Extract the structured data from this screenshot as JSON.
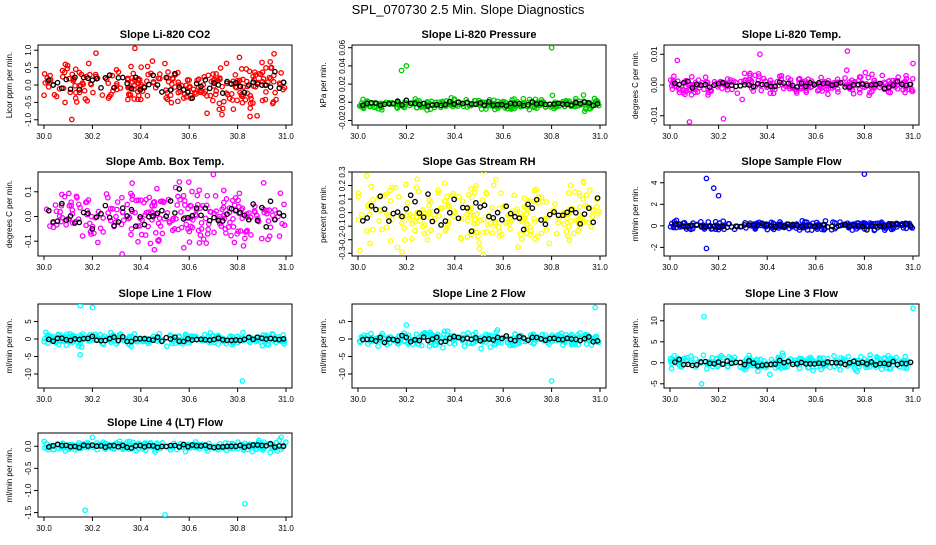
{
  "page_title": "SPL_070730  2.5 Min. Slope Diagnostics",
  "x_ticks": [
    "30.0",
    "30.2",
    "30.4",
    "30.6",
    "30.8",
    "31.0"
  ],
  "x_range": [
    30.0,
    31.0
  ],
  "colors": {
    "black": "#000000",
    "red": "#ff0000",
    "green": "#00cc00",
    "magenta": "#ff00ff",
    "yellow": "#ffff00",
    "blue": "#0000ff",
    "cyan": "#00ffff"
  },
  "chart_data": [
    {
      "type": "scatter",
      "title": "Slope Li-820 CO2",
      "ylabel": "Licor ppm per min.",
      "ylim": [
        -1.15,
        1.15
      ],
      "yticks": [
        "-1.0",
        "-0.5",
        "0.0",
        "0.5",
        "1.0"
      ],
      "ytick_values": [
        -1.0,
        -0.5,
        0.0,
        0.5,
        1.0
      ],
      "color": "red",
      "center": 0.0,
      "spread": 0.35,
      "outliers": []
    },
    {
      "type": "scatter",
      "title": "Slope Li-820 Pressure",
      "ylabel": "kPa per min.",
      "ylim": [
        -0.025,
        0.063
      ],
      "yticks": [
        "-0.02",
        "0.00",
        "0.02",
        "0.04",
        "0.06"
      ],
      "ytick_values": [
        -0.02,
        0.0,
        0.02,
        0.04,
        0.06
      ],
      "color": "green",
      "center": -0.002,
      "spread": 0.003,
      "outliers": [
        [
          30.18,
          0.035
        ],
        [
          30.2,
          0.04
        ],
        [
          30.8,
          0.06
        ]
      ]
    },
    {
      "type": "scatter",
      "title": "Slope Li-820 Temp.",
      "ylabel": "degrees C per min.",
      "ylim": [
        -0.013,
        0.013
      ],
      "yticks": [
        "-0.01",
        "0.00",
        "0.01"
      ],
      "ytick_values": [
        -0.01,
        0.0,
        0.01
      ],
      "color": "magenta",
      "center": 0.0,
      "spread": 0.0015,
      "outliers": [
        [
          30.03,
          0.008
        ],
        [
          30.08,
          -0.012
        ],
        [
          30.22,
          -0.011
        ],
        [
          30.37,
          0.01
        ],
        [
          30.73,
          0.011
        ],
        [
          31.0,
          0.007
        ]
      ]
    },
    {
      "type": "scatter",
      "title": "Slope Amb. Box Temp.",
      "ylabel": "degrees C per min.",
      "ylim": [
        -0.16,
        0.18
      ],
      "yticks": [
        "-0.1",
        "0.0",
        "0.1"
      ],
      "ytick_values": [
        -0.1,
        0.0,
        0.1
      ],
      "color": "magenta",
      "center": 0.0,
      "spread": 0.06,
      "outliers": [
        [
          30.7,
          0.17
        ]
      ]
    },
    {
      "type": "scatter",
      "title": "Slope Gas Stream RH",
      "ylabel": "percent per min.",
      "ylim": [
        -0.32,
        0.3
      ],
      "yticks": [
        "-0.3",
        "-0.2",
        "-0.1",
        "0.0",
        "0.1",
        "0.2",
        "0.3"
      ],
      "ytick_values": [
        -0.3,
        -0.2,
        -0.1,
        0.0,
        0.1,
        0.2,
        0.3
      ],
      "color": "yellow",
      "center": 0.0,
      "spread": 0.12,
      "outliers": []
    },
    {
      "type": "scatter",
      "title": "Slope Sample Flow",
      "ylabel": "ml/min per min.",
      "ylim": [
        -2.8,
        5.0
      ],
      "yticks": [
        "-2",
        "0",
        "2",
        "4"
      ],
      "ytick_values": [
        -2,
        0,
        2,
        4
      ],
      "color": "blue",
      "center": 0.0,
      "spread": 0.2,
      "outliers": [
        [
          30.15,
          4.4
        ],
        [
          30.18,
          3.5
        ],
        [
          30.2,
          2.8
        ],
        [
          30.8,
          4.8
        ],
        [
          30.15,
          -2.1
        ]
      ]
    },
    {
      "type": "scatter",
      "title": "Slope Line 1 Flow",
      "ylabel": "ml/min per min.",
      "ylim": [
        -14,
        10
      ],
      "yticks": [
        "-10",
        "-5",
        "0",
        "5"
      ],
      "ytick_values": [
        -10,
        -5,
        0,
        5
      ],
      "color": "cyan",
      "center": 0.0,
      "spread": 0.8,
      "outliers": [
        [
          30.15,
          9.5
        ],
        [
          30.2,
          9
        ],
        [
          30.82,
          -12
        ],
        [
          30.15,
          -4.5
        ]
      ]
    },
    {
      "type": "scatter",
      "title": "Slope Line 2 Flow",
      "ylabel": "ml/min per min.",
      "ylim": [
        -14,
        10
      ],
      "yticks": [
        "-10",
        "-5",
        "0",
        "5"
      ],
      "ytick_values": [
        -10,
        -5,
        0,
        5
      ],
      "color": "cyan",
      "center": 0.0,
      "spread": 1.0,
      "outliers": [
        [
          30.8,
          -12
        ],
        [
          30.98,
          9
        ],
        [
          30.2,
          4
        ]
      ]
    },
    {
      "type": "scatter",
      "title": "Slope Line 3 Flow",
      "ylabel": "ml/min per min.",
      "ylim": [
        -6,
        14
      ],
      "yticks": [
        "-5",
        "0",
        "5",
        "10"
      ],
      "ytick_values": [
        -5,
        0,
        5,
        10
      ],
      "color": "cyan",
      "center": 0.0,
      "spread": 0.9,
      "outliers": [
        [
          30.14,
          11
        ],
        [
          30.13,
          -5
        ],
        [
          31.0,
          13
        ]
      ]
    },
    {
      "type": "scatter",
      "title": "Slope Line 4 (LT) Flow",
      "ylabel": "ml/min per min.",
      "ylim": [
        -1.6,
        0.3
      ],
      "yticks": [
        "-1.5",
        "-1.0",
        "-0.5",
        "0.0"
      ],
      "ytick_values": [
        -1.5,
        -1.0,
        -0.5,
        0.0
      ],
      "color": "cyan",
      "center": 0.0,
      "spread": 0.05,
      "outliers": [
        [
          30.17,
          -1.45
        ],
        [
          30.5,
          -1.55
        ],
        [
          30.83,
          -1.3
        ],
        [
          30.2,
          0.2
        ],
        [
          30.98,
          0.2
        ]
      ]
    }
  ]
}
